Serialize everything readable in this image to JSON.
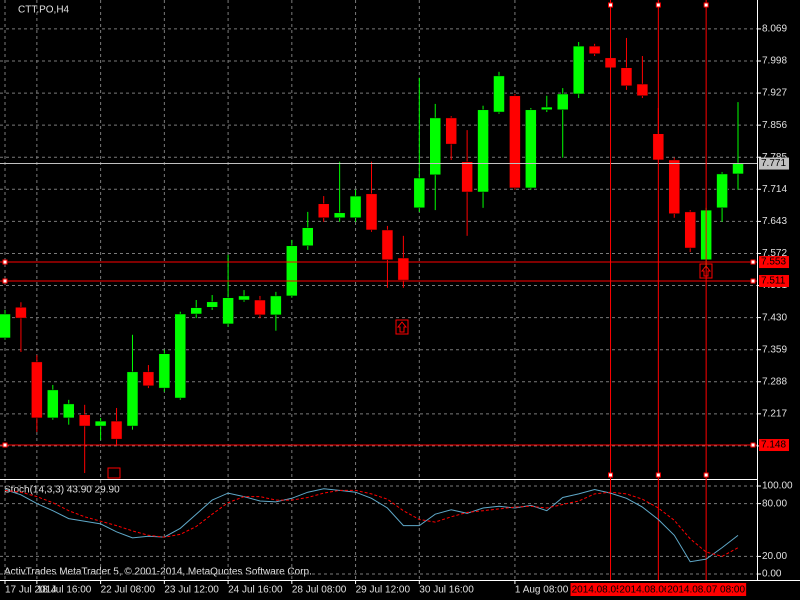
{
  "chart_data": [
    {
      "type": "candlestick",
      "title": "CTT.PO,H4",
      "categories": [
        "17 Jul 2014",
        null,
        "18 Jul 16:00",
        null,
        null,
        null,
        "22 Jul 08:00",
        null,
        null,
        null,
        "23 Jul 12:00",
        null,
        null,
        null,
        "24 Jul 16:00",
        null,
        null,
        null,
        "28 Jul 08:00",
        null,
        null,
        null,
        "29 Jul 12:00",
        null,
        null,
        null,
        "30 Jul 16:00",
        null,
        null,
        null,
        null,
        null,
        "1 Aug 08:00",
        null,
        null,
        null,
        null,
        null,
        "2014.08.05 12:00",
        null,
        null,
        "2014.08.06 08:00",
        null,
        null,
        "2014.08.07 08:00",
        null,
        null
      ],
      "open": [
        7.385,
        7.453,
        7.332,
        7.208,
        7.208,
        7.215,
        7.19,
        7.201,
        7.19,
        7.31,
        7.274,
        7.252,
        7.438,
        7.453,
        7.416,
        7.469,
        7.469,
        7.436,
        7.478,
        7.589,
        7.682,
        7.651,
        7.651,
        7.704,
        7.624,
        7.562,
        7.673,
        7.746,
        7.872,
        7.775,
        7.708,
        7.885,
        7.921,
        7.717,
        7.89,
        7.89,
        7.925,
        8.031,
        8.005,
        7.983,
        7.947,
        7.837,
        7.779,
        7.664,
        7.558,
        7.673,
        7.748
      ],
      "high": [
        7.447,
        7.464,
        7.347,
        7.281,
        7.248,
        7.237,
        7.208,
        7.23,
        7.392,
        7.325,
        7.359,
        7.443,
        7.469,
        7.48,
        7.569,
        7.491,
        7.478,
        7.487,
        7.602,
        7.664,
        7.699,
        7.775,
        7.713,
        7.775,
        7.633,
        7.611,
        7.961,
        7.903,
        7.876,
        7.845,
        7.899,
        7.974,
        7.925,
        7.894,
        7.921,
        7.938,
        8.04,
        8.036,
        8.04,
        8.049,
        8.009,
        7.894,
        7.784,
        7.668,
        7.673,
        7.752,
        7.907
      ],
      "low": [
        7.381,
        7.354,
        7.177,
        7.204,
        7.193,
        7.086,
        7.159,
        7.148,
        7.182,
        7.274,
        7.266,
        7.248,
        7.429,
        7.447,
        7.41,
        7.465,
        7.429,
        7.401,
        7.474,
        7.58,
        7.642,
        7.642,
        7.642,
        7.62,
        7.496,
        7.496,
        7.664,
        7.668,
        7.779,
        7.611,
        7.673,
        7.881,
        7.713,
        7.713,
        7.885,
        7.784,
        7.916,
        8.009,
        7.934,
        7.934,
        7.916,
        7.775,
        7.651,
        7.575,
        7.54,
        7.642,
        7.713
      ],
      "close": [
        7.438,
        7.429,
        7.208,
        7.27,
        7.239,
        7.19,
        7.201,
        7.161,
        7.31,
        7.279,
        7.35,
        7.438,
        7.452,
        7.465,
        7.474,
        7.478,
        7.436,
        7.478,
        7.589,
        7.629,
        7.651,
        7.662,
        7.699,
        7.624,
        7.558,
        7.513,
        7.739,
        7.872,
        7.814,
        7.708,
        7.89,
        7.965,
        7.717,
        7.89,
        7.896,
        7.925,
        8.031,
        8.014,
        7.983,
        7.943,
        7.921,
        7.779,
        7.66,
        7.584,
        7.668,
        7.748,
        7.772
      ],
      "up_color": "#00ff00",
      "down_color": "#ff0000",
      "ylim": [
        7.075,
        8.133
      ],
      "yticks": [
        8.069,
        7.998,
        7.927,
        7.856,
        7.785,
        7.714,
        7.643,
        7.572,
        7.501,
        {
          "value": 7.43,
          "label": "7.430"
        },
        7.359,
        7.288,
        7.217,
        7.146
      ],
      "grid": true,
      "hlines": [
        {
          "value": 7.771,
          "label": "7.771",
          "color": "#c0c0c0"
        },
        {
          "value": 7.553,
          "label": "7.553",
          "color": "#ff0000"
        },
        {
          "value": 7.511,
          "label": "7.511",
          "color": "#ff0000"
        },
        {
          "value": 7.148,
          "label": "7.148",
          "color": "#ff0000"
        }
      ],
      "vlines": [
        38,
        41,
        44
      ],
      "vline_color": "#ff0000"
    },
    {
      "type": "line",
      "title": "Stoch(14,3,3) 43.90 29.90",
      "series": [
        {
          "color": "#5fa8c8",
          "dashed": false,
          "values": [
            96,
            90,
            80,
            72,
            63,
            60,
            57,
            48,
            41,
            43,
            42,
            52,
            68,
            84,
            92,
            88,
            83,
            82,
            86,
            93,
            97,
            95,
            93,
            86,
            75,
            55,
            55,
            68,
            73,
            69,
            75,
            77,
            75,
            78,
            72,
            87,
            91,
            96,
            92,
            86,
            76,
            62,
            44,
            14,
            17,
            30,
            43.9
          ]
        },
        {
          "color": "#ff0000",
          "dashed": true,
          "values": [
            95,
            93,
            88,
            81,
            72,
            65,
            60,
            55,
            49,
            44,
            42,
            45,
            54,
            68,
            81,
            88,
            88,
            84,
            84,
            87,
            92,
            95,
            95,
            91,
            85,
            72,
            62,
            59,
            65,
            70,
            72,
            74,
            76,
            77,
            75,
            79,
            83,
            91,
            93,
            91,
            85,
            75,
            61,
            40,
            25,
            20,
            29.9
          ]
        }
      ],
      "ylim": [
        -6.8,
        105.7
      ],
      "yticks": [
        {
          "value": 100,
          "label": "100.00"
        },
        {
          "value": 80,
          "label": "80.00"
        },
        {
          "value": 20,
          "label": "20.00"
        },
        {
          "value": 0,
          "label": "0.00"
        }
      ],
      "grid": true
    }
  ],
  "footer": "ActivTrades MetaTrader 5, © 2001-2014, MetaQuotes Software Corp."
}
